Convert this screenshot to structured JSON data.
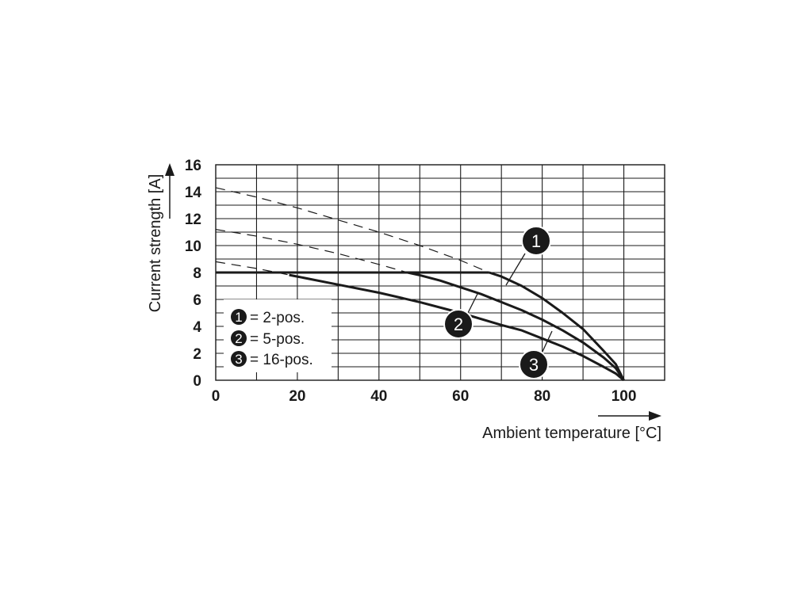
{
  "chart_data": {
    "type": "line",
    "xlabel": "Ambient temperature [°C]",
    "ylabel": "Current strength [A]",
    "xlim": [
      0,
      110
    ],
    "ylim": [
      0,
      16
    ],
    "x_ticks": [
      0,
      20,
      40,
      60,
      80,
      100
    ],
    "y_ticks": [
      0,
      2,
      4,
      6,
      8,
      10,
      12,
      14,
      16
    ],
    "x_grid_step": 10,
    "y_grid_step": 1,
    "grid": true,
    "legend_position": "bottom-left",
    "legend": [
      {
        "badge": "1",
        "text": "= 2-pos."
      },
      {
        "badge": "2",
        "text": "= 5-pos."
      },
      {
        "badge": "3",
        "text": "= 16-pos."
      }
    ],
    "plateau": 8,
    "series": [
      {
        "callout": "1",
        "x": [
          0,
          10,
          20,
          30,
          40,
          50,
          60,
          67,
          70,
          75,
          80,
          85,
          90,
          95,
          98,
          100
        ],
        "y": [
          14.3,
          13.6,
          12.8,
          11.9,
          11.0,
          10.0,
          8.9,
          8.0,
          7.7,
          7.0,
          6.1,
          5.0,
          3.8,
          2.2,
          1.2,
          0
        ],
        "rated_from_x": 67
      },
      {
        "callout": "2",
        "x": [
          0,
          10,
          20,
          30,
          40,
          47,
          50,
          55,
          60,
          65,
          70,
          75,
          80,
          85,
          90,
          95,
          98,
          100
        ],
        "y": [
          11.2,
          10.7,
          10.1,
          9.4,
          8.6,
          8.0,
          7.8,
          7.4,
          6.9,
          6.4,
          5.8,
          5.2,
          4.5,
          3.7,
          2.8,
          1.7,
          0.9,
          0
        ],
        "rated_from_x": 47
      },
      {
        "callout": "3",
        "x": [
          0,
          10,
          20,
          30,
          40,
          50,
          60,
          70,
          75,
          80,
          85,
          90,
          95,
          98,
          100
        ],
        "y": [
          8.8,
          8.3,
          7.7,
          7.1,
          6.5,
          5.8,
          5.0,
          4.1,
          3.7,
          3.1,
          2.5,
          1.8,
          1.0,
          0.5,
          0
        ],
        "rated_from_x": 18
      }
    ]
  }
}
